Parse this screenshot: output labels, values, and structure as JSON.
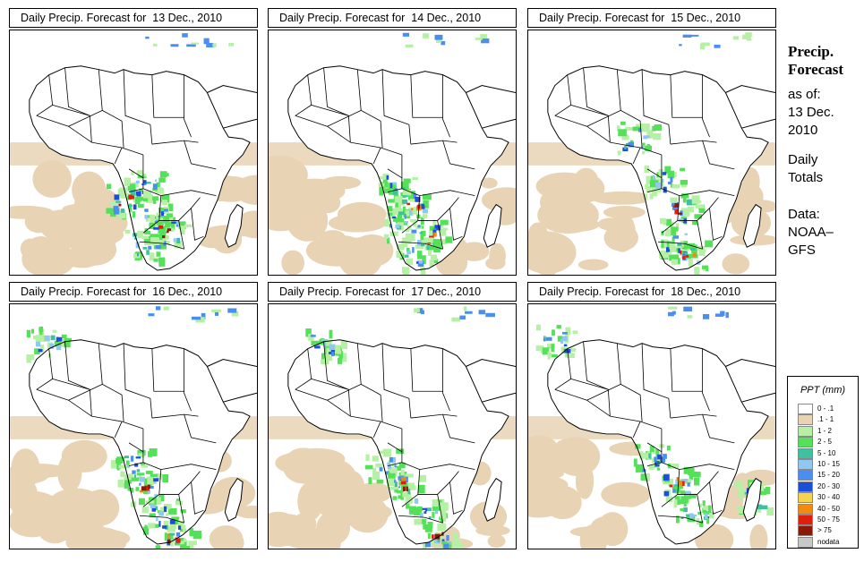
{
  "panels": [
    {
      "title": "Daily Precip. Forecast for  13 Dec., 2010"
    },
    {
      "title": "Daily Precip. Forecast for  14 Dec., 2010"
    },
    {
      "title": "Daily Precip. Forecast for  15 Dec., 2010"
    },
    {
      "title": "Daily Precip. Forecast for  16 Dec., 2010"
    },
    {
      "title": "Daily Precip. Forecast for  17 Dec., 2010"
    },
    {
      "title": "Daily Precip. Forecast for  18 Dec., 2010"
    }
  ],
  "sidebar": {
    "heading_line1": "Precip.",
    "heading_line2": "Forecast",
    "asof_line1": "as of:",
    "asof_line2": "13 Dec.",
    "asof_line3": "2010",
    "totals_line1": "Daily",
    "totals_line2": "Totals",
    "source_line1": "Data:",
    "source_line2": "NOAA–",
    "source_line3": "GFS"
  },
  "legend": {
    "title": "PPT (mm)",
    "items": [
      {
        "label": "0 - .1",
        "color": "#ffffff"
      },
      {
        "label": ".1 - 1",
        "color": "#e8d4b5"
      },
      {
        "label": "1 - 2",
        "color": "#b6f0a4"
      },
      {
        "label": "2 - 5",
        "color": "#55e05a"
      },
      {
        "label": "5 - 10",
        "color": "#3fc0a0"
      },
      {
        "label": "10 - 15",
        "color": "#8fc8f0"
      },
      {
        "label": "15 - 20",
        "color": "#4a8ef0"
      },
      {
        "label": "20 - 30",
        "color": "#1c4fd8"
      },
      {
        "label": "30 - 40",
        "color": "#f4d44c"
      },
      {
        "label": "40 - 50",
        "color": "#f08a10"
      },
      {
        "label": "50 - 75",
        "color": "#e01e0c"
      },
      {
        "label": "> 75",
        "color": "#8c1808"
      },
      {
        "label": "nodata",
        "color": "#c8c8c8"
      }
    ]
  }
}
